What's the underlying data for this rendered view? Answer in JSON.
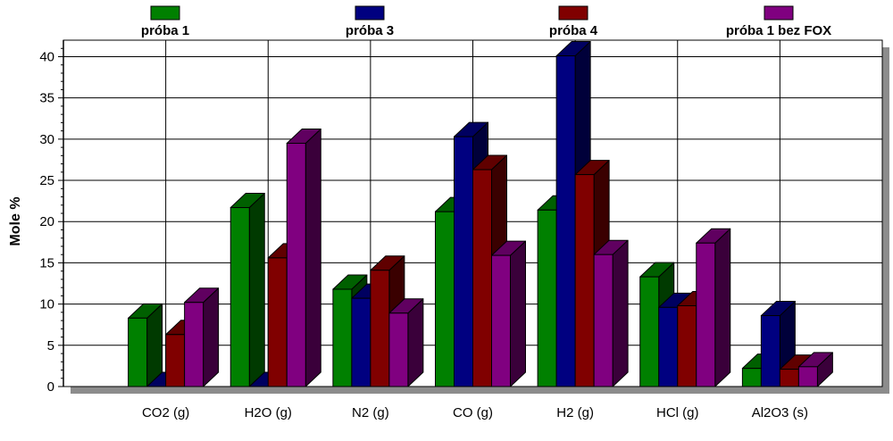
{
  "chart_data": {
    "type": "bar",
    "ylabel": "Mole %",
    "xlabel": "",
    "ylim": [
      0,
      42
    ],
    "yticks": [
      0,
      5,
      10,
      15,
      20,
      25,
      30,
      35,
      40
    ],
    "grid": true,
    "three_d": true,
    "legend_position": "top",
    "categories": [
      "CO2 (g)",
      "H2O (g)",
      "N2 (g)",
      "CO (g)",
      "H2 (g)",
      "HCl (g)",
      "Al2O3 (s)"
    ],
    "series": [
      {
        "name": "próba 1",
        "color": "#008000",
        "values": [
          8.3,
          21.7,
          11.8,
          21.2,
          21.4,
          13.3,
          2.2
        ]
      },
      {
        "name": "próba 3",
        "color": "#000080",
        "values": [
          0,
          0,
          10.7,
          30.3,
          40.1,
          9.6,
          8.6
        ]
      },
      {
        "name": "próba 4",
        "color": "#800000",
        "values": [
          6.3,
          15.6,
          14.1,
          26.3,
          25.7,
          9.8,
          2.1
        ]
      },
      {
        "name": "próba 1 bez FOX",
        "color": "#800080",
        "values": [
          10.2,
          29.5,
          8.9,
          15.9,
          16.0,
          17.4,
          2.4
        ]
      }
    ]
  }
}
